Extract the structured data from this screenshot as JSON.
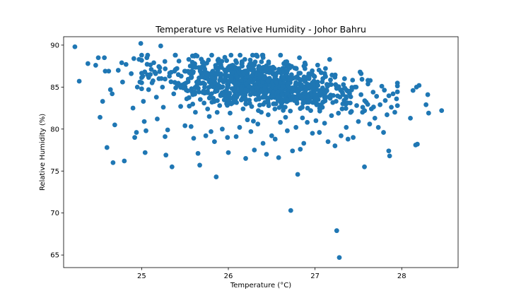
{
  "chart_data": {
    "type": "scatter",
    "title": "Temperature vs Relative Humidity - Johor Bahru",
    "xlabel": "Temperature (°C)",
    "ylabel": "Relative Humidity (%)",
    "xlim": [
      24.1,
      28.65
    ],
    "ylim": [
      63.5,
      91.0
    ],
    "xticks": [
      25,
      26,
      27,
      28
    ],
    "yticks": [
      65,
      70,
      75,
      80,
      85,
      90
    ],
    "grid": false,
    "legend": "none",
    "color": "#1f77b4",
    "series": [
      {
        "points": [
          [
            24.23,
            89.8
          ],
          [
            24.28,
            85.7
          ],
          [
            24.38,
            87.8
          ],
          [
            24.47,
            87.6
          ],
          [
            24.5,
            88.5
          ],
          [
            24.52,
            81.4
          ],
          [
            24.55,
            83.3
          ],
          [
            24.57,
            88.5
          ],
          [
            24.58,
            86.9
          ],
          [
            24.62,
            86.9
          ],
          [
            24.6,
            77.8
          ],
          [
            24.64,
            84.7
          ],
          [
            24.66,
            84.2
          ],
          [
            24.67,
            76.0
          ],
          [
            24.69,
            80.5
          ],
          [
            24.73,
            87.0
          ],
          [
            24.78,
            85.6
          ],
          [
            24.8,
            76.2
          ],
          [
            24.77,
            87.9
          ],
          [
            24.82,
            87.7
          ],
          [
            24.88,
            86.6
          ],
          [
            24.9,
            82.5
          ],
          [
            24.91,
            88.4
          ],
          [
            24.92,
            79.0
          ],
          [
            24.94,
            79.6
          ],
          [
            24.95,
            85.0
          ],
          [
            24.97,
            88.3
          ],
          [
            24.98,
            85.6
          ],
          [
            24.99,
            90.2
          ],
          [
            25.0,
            84.8
          ],
          [
            25.02,
            83.3
          ],
          [
            25.03,
            80.9
          ],
          [
            25.04,
            77.2
          ],
          [
            25.05,
            79.8
          ],
          [
            25.06,
            88.5
          ],
          [
            25.08,
            84.7
          ],
          [
            25.1,
            86.5
          ],
          [
            25.12,
            85.5
          ],
          [
            25.14,
            87.9
          ],
          [
            25.15,
            86.8
          ],
          [
            25.17,
            83.8
          ],
          [
            25.18,
            81.2
          ],
          [
            25.2,
            86.0
          ],
          [
            25.22,
            89.9
          ],
          [
            25.24,
            85.0
          ],
          [
            25.25,
            82.6
          ],
          [
            25.27,
            79.1
          ],
          [
            25.28,
            76.9
          ],
          [
            25.3,
            79.9
          ],
          [
            25.32,
            86.3
          ],
          [
            25.35,
            75.5
          ],
          [
            25.37,
            84.2
          ],
          [
            25.39,
            87.1
          ],
          [
            25.41,
            85.2
          ],
          [
            25.43,
            88.1
          ],
          [
            25.45,
            82.7
          ],
          [
            25.48,
            84.9
          ],
          [
            25.5,
            80.4
          ],
          [
            25.52,
            83.6
          ],
          [
            25.55,
            86.7
          ],
          [
            25.57,
            80.3
          ],
          [
            25.59,
            84.1
          ],
          [
            25.6,
            78.9
          ],
          [
            25.62,
            82.0
          ],
          [
            25.64,
            88.7
          ],
          [
            25.65,
            77.1
          ],
          [
            25.67,
            75.7
          ],
          [
            25.69,
            86.2
          ],
          [
            25.72,
            83.1
          ],
          [
            25.74,
            79.2
          ],
          [
            25.76,
            84.5
          ],
          [
            25.78,
            81.5
          ],
          [
            25.8,
            79.7
          ],
          [
            25.82,
            86.9
          ],
          [
            25.84,
            78.5
          ],
          [
            25.86,
            74.3
          ],
          [
            25.88,
            85.3
          ],
          [
            25.9,
            82.8
          ],
          [
            25.93,
            80.0
          ],
          [
            25.95,
            84.0
          ],
          [
            25.97,
            86.5
          ],
          [
            25.99,
            79.0
          ],
          [
            26.0,
            77.2
          ],
          [
            26.02,
            81.9
          ],
          [
            26.05,
            87.6
          ],
          [
            26.07,
            83.7
          ],
          [
            26.09,
            79.1
          ],
          [
            26.11,
            86.1
          ],
          [
            26.13,
            80.2
          ],
          [
            26.15,
            84.8
          ],
          [
            26.17,
            82.4
          ],
          [
            26.19,
            88.3
          ],
          [
            26.2,
            76.5
          ],
          [
            26.22,
            81.1
          ],
          [
            26.24,
            85.7
          ],
          [
            26.26,
            79.7
          ],
          [
            26.28,
            87.2
          ],
          [
            26.3,
            77.5
          ],
          [
            26.32,
            83.5
          ],
          [
            26.34,
            80.6
          ],
          [
            26.36,
            86.4
          ],
          [
            26.38,
            82.0
          ],
          [
            26.4,
            78.3
          ],
          [
            26.42,
            84.9
          ],
          [
            26.44,
            77.0
          ],
          [
            26.46,
            81.7
          ],
          [
            26.48,
            86.8
          ],
          [
            26.5,
            79.2
          ],
          [
            26.52,
            83.0
          ],
          [
            26.54,
            78.8
          ],
          [
            26.56,
            85.5
          ],
          [
            26.58,
            76.6
          ],
          [
            26.6,
            80.8
          ],
          [
            26.62,
            84.1
          ],
          [
            26.64,
            87.8
          ],
          [
            26.66,
            81.4
          ],
          [
            26.68,
            79.8
          ],
          [
            26.7,
            85.0
          ],
          [
            26.72,
            70.3
          ],
          [
            26.74,
            77.4
          ],
          [
            26.76,
            83.4
          ],
          [
            26.78,
            80.2
          ],
          [
            26.8,
            74.6
          ],
          [
            26.82,
            88.5
          ],
          [
            26.83,
            77.6
          ],
          [
            26.85,
            82.6
          ],
          [
            26.87,
            78.3
          ],
          [
            26.89,
            84.6
          ],
          [
            26.91,
            80.8
          ],
          [
            26.93,
            86.0
          ],
          [
            26.95,
            82.2
          ],
          [
            26.97,
            79.5
          ],
          [
            26.99,
            84.3
          ],
          [
            27.01,
            81.0
          ],
          [
            27.03,
            85.6
          ],
          [
            27.05,
            79.6
          ],
          [
            27.07,
            82.9
          ],
          [
            27.09,
            86.0
          ],
          [
            27.11,
            80.7
          ],
          [
            27.13,
            83.8
          ],
          [
            27.15,
            78.5
          ],
          [
            27.17,
            85.3
          ],
          [
            27.19,
            81.6
          ],
          [
            27.21,
            84.0
          ],
          [
            27.23,
            78.0
          ],
          [
            27.25,
            67.9
          ],
          [
            27.28,
            64.7
          ],
          [
            27.3,
            79.2
          ],
          [
            27.32,
            83.0
          ],
          [
            27.34,
            86.0
          ],
          [
            27.36,
            80.2
          ],
          [
            27.38,
            78.8
          ],
          [
            27.4,
            84.5
          ],
          [
            27.42,
            82.1
          ],
          [
            27.44,
            79.0
          ],
          [
            27.46,
            85.0
          ],
          [
            27.48,
            82.8
          ],
          [
            27.5,
            80.9
          ],
          [
            27.53,
            84.1
          ],
          [
            27.55,
            82.6
          ],
          [
            27.57,
            75.5
          ],
          [
            27.59,
            83.2
          ],
          [
            27.61,
            85.8
          ],
          [
            27.63,
            80.6
          ],
          [
            27.65,
            82.4
          ],
          [
            27.67,
            84.4
          ],
          [
            27.69,
            81.3
          ],
          [
            27.71,
            83.9
          ],
          [
            27.73,
            80.2
          ],
          [
            27.75,
            82.9
          ],
          [
            27.77,
            85.1
          ],
          [
            27.79,
            79.6
          ],
          [
            27.81,
            83.4
          ],
          [
            27.83,
            81.7
          ],
          [
            27.85,
            77.4
          ],
          [
            27.86,
            76.8
          ],
          [
            27.88,
            82.6
          ],
          [
            27.9,
            84.2
          ],
          [
            27.92,
            82.0
          ],
          [
            27.94,
            83.6
          ],
          [
            28.1,
            81.3
          ],
          [
            28.13,
            84.6
          ],
          [
            28.16,
            78.1
          ],
          [
            28.18,
            78.2
          ],
          [
            28.2,
            85.2
          ],
          [
            28.17,
            85.0
          ],
          [
            28.28,
            82.9
          ],
          [
            28.3,
            84.1
          ],
          [
            28.31,
            81.9
          ],
          [
            28.46,
            82.2
          ]
        ]
      }
    ],
    "cloud": {
      "note_free": true,
      "count": 900,
      "x_mean": 26.4,
      "x_sd": 0.55,
      "y_intercept": 85.8,
      "slope": -0.9,
      "y_sd": 1.4
    }
  }
}
